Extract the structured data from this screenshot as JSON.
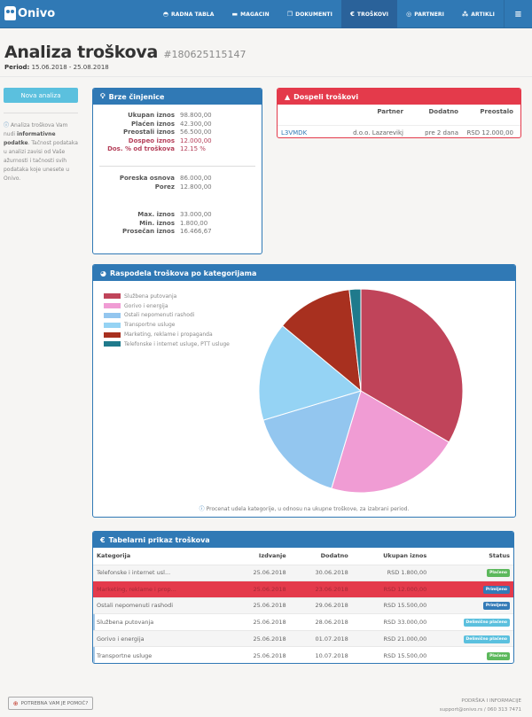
{
  "app": {
    "brand": "Onivo"
  },
  "nav": {
    "items": [
      {
        "label": "RADNA TABLA",
        "icon": "dashboard-icon",
        "active": false
      },
      {
        "label": "MAGACIN",
        "icon": "truck-icon",
        "active": false
      },
      {
        "label": "DOKUMENTI",
        "icon": "documents-icon",
        "active": false
      },
      {
        "label": "TROŠKOVI",
        "icon": "euro-icon",
        "active": true
      },
      {
        "label": "PARTNERI",
        "icon": "handshake-icon",
        "active": false
      },
      {
        "label": "ARTIKLI",
        "icon": "cubes-icon",
        "active": false
      }
    ],
    "menu_icon": "hamburger-icon"
  },
  "page": {
    "title": "Analiza troškova",
    "number": "#180625115147",
    "period_label": "Period:",
    "period_value": "15.06.2018 - 25.08.2018"
  },
  "sidebar": {
    "new_button": "Nova analiza",
    "info_pre": "Analiza troškova Vam nudi",
    "info_bold": "informativne podatke",
    "info_post": ". Tačnost podataka u analizi zavisi od Vaše ažurnosti i tačnosti svih podataka koje unesete u Onivo."
  },
  "facts": {
    "title": "Brze činjenice",
    "group1": [
      {
        "label": "Ukupan iznos",
        "value": "98.800,00"
      },
      {
        "label": "Plaćen iznos",
        "value": "42.300,00"
      },
      {
        "label": "Preostali iznos",
        "value": "56.500,00"
      },
      {
        "label": "Dospeo iznos",
        "value": "12.000,00",
        "due": true
      },
      {
        "label": "Dos. % od troškova",
        "value": "12.15 %",
        "due": true
      }
    ],
    "group2": [
      {
        "label": "Poreska osnova",
        "value": "86.000,00"
      },
      {
        "label": "Porez",
        "value": "12.800,00"
      }
    ],
    "group3": [
      {
        "label": "Max. iznos",
        "value": "33.000,00"
      },
      {
        "label": "Min. iznos",
        "value": "1.800,00"
      },
      {
        "label": "Prosečan iznos",
        "value": "16.466,67"
      }
    ]
  },
  "due": {
    "title": "Dospeli troškovi",
    "headers": [
      "",
      "Partner",
      "Dodatno",
      "Preostalo"
    ],
    "rows": [
      {
        "code": "L3VMDK",
        "partner": "d.o.o. Lazarevikj",
        "extra": "pre 2 dana",
        "remaining": "RSD 12.000,00"
      }
    ]
  },
  "pie_panel": {
    "title": "Raspodela troškova po kategorijama",
    "note": "Procenat udela kategorije, u odnosu na ukupne troškove, za izabrani period."
  },
  "chart_data": {
    "type": "pie",
    "title": "Raspodela troškova po kategorijama",
    "legend_position": "top-left",
    "start": "top, clockwise",
    "slices": [
      {
        "label": "Službena putovanja",
        "value": 33000,
        "color": "#c0445a"
      },
      {
        "label": "Gorivo i energija",
        "value": 21000,
        "color": "#f09cd4"
      },
      {
        "label": "Ostali nepomenuti rashodi",
        "value": 15500,
        "color": "#93c6ef"
      },
      {
        "label": "Transportne usluge",
        "value": 15500,
        "color": "#95d3f4"
      },
      {
        "label": "Marketing, reklame i propaganda",
        "value": 12000,
        "color": "#a8301f"
      },
      {
        "label": "Telefonske i internet usluge, PTT usluge",
        "value": 1800,
        "color": "#1f7a8c"
      }
    ]
  },
  "table": {
    "title": "Tabelarni prikaz troškova",
    "headers": [
      "Kategorija",
      "Izdvanje",
      "Dodatno",
      "Ukupan iznos",
      "Status"
    ],
    "rows": [
      {
        "category": "Telefonske i internet usl...",
        "issued": "25.06.2018",
        "extra": "30.06.2018",
        "total": "RSD 1.800,00",
        "status": "Plaćeno",
        "status_kind": "paid",
        "style": "odd"
      },
      {
        "category": "Marketing, reklame i prop...",
        "issued": "25.06.2018",
        "extra": "23.06.2018",
        "total": "RSD 12.000,00",
        "status": "Primljeno",
        "status_kind": "rec",
        "style": "danger"
      },
      {
        "category": "Ostali nepomenuti rashodi",
        "issued": "25.06.2018",
        "extra": "29.06.2018",
        "total": "RSD 15.500,00",
        "status": "Primljeno",
        "status_kind": "rec",
        "style": "odd"
      },
      {
        "category": "Službena putovanja",
        "issued": "25.06.2018",
        "extra": "28.06.2018",
        "total": "RSD 33.000,00",
        "status": "Delimično plaćeno",
        "status_kind": "part",
        "style": "mark"
      },
      {
        "category": "Gorivo i energija",
        "issued": "25.06.2018",
        "extra": "01.07.2018",
        "total": "RSD 21.000,00",
        "status": "Delimično plaćeno",
        "status_kind": "part",
        "style": "odd"
      },
      {
        "category": "Transportne usluge",
        "issued": "25.06.2018",
        "extra": "10.07.2018",
        "total": "RSD 15.500,00",
        "status": "Plaćeno",
        "status_kind": "paid",
        "style": "mark"
      }
    ]
  },
  "footer": {
    "help_button": "POTREBNA VAM JE POMOĆ?",
    "support_title": "PODRŠKA I INFORMACIJE",
    "support_contact": "support@onivo.rs / 060 313 7471"
  }
}
